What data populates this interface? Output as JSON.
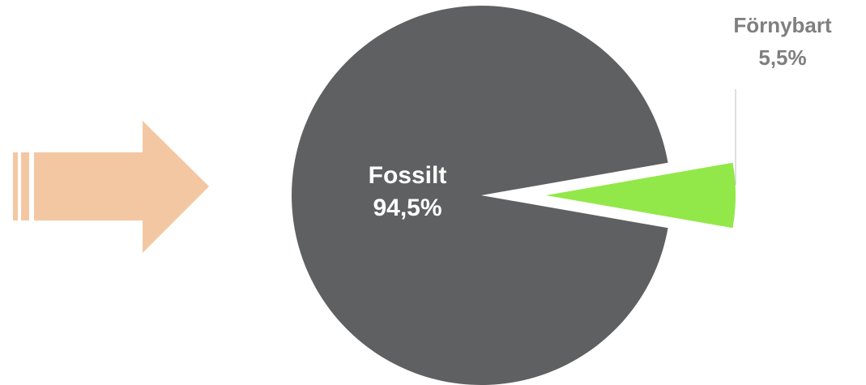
{
  "decor": {
    "arrow_icon": "right-arrow-icon",
    "arrow_color": "#f4c7a3"
  },
  "chart_data": {
    "type": "pie",
    "title": "",
    "slices": [
      {
        "name": "Fossilt",
        "value": 94.5,
        "label": "94,5%",
        "color": "#5f6062",
        "exploded": false
      },
      {
        "name": "Förnybart",
        "value": 5.5,
        "label": "5,5%",
        "color": "#92e848",
        "exploded": true
      }
    ],
    "label_colors": {
      "inside": "#ffffff",
      "outside": "#7f7f7f",
      "leader_line": "#bfbfbf"
    }
  }
}
